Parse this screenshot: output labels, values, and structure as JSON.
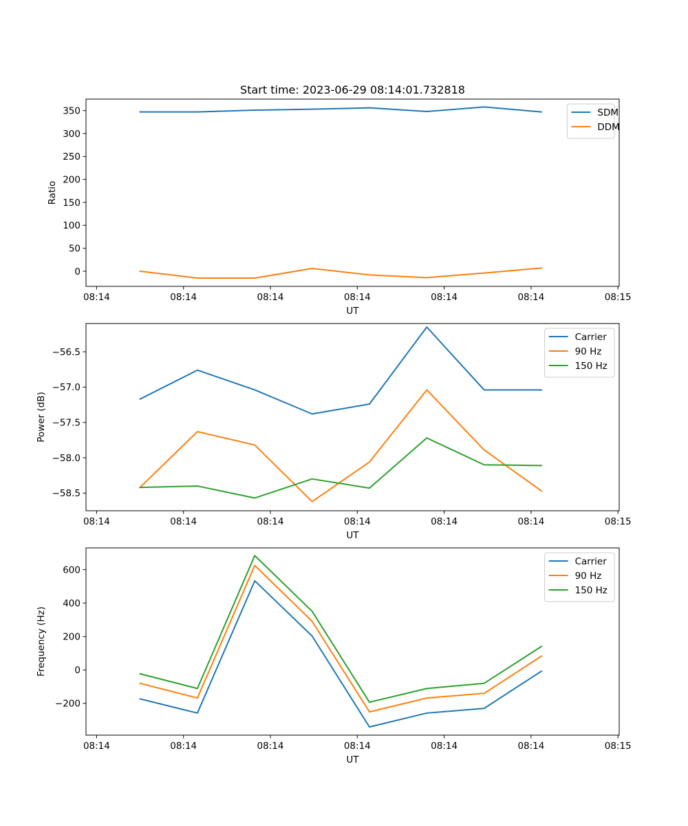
{
  "figure": {
    "title": "Start time: 2023-06-29 08:14:01.732818"
  },
  "chart_data": [
    {
      "type": "line",
      "title": "Start time: 2023-06-29 08:14:01.732818",
      "xlabel": "UT",
      "ylabel": "Ratio",
      "x_tick_labels": [
        "08:14",
        "08:14",
        "08:14",
        "08:14",
        "08:14",
        "08:14",
        "08:15"
      ],
      "x": [
        0.5,
        1.16,
        1.82,
        2.48,
        3.14,
        3.8,
        4.46,
        5.12
      ],
      "xlim": [
        0,
        6
      ],
      "x_ticks": [
        0,
        1,
        2,
        3,
        4,
        5,
        6
      ],
      "ylim": [
        -33,
        375
      ],
      "y_ticks": [
        0,
        50,
        100,
        150,
        200,
        250,
        300,
        350
      ],
      "legend": "top-right",
      "grid": false,
      "series": [
        {
          "name": "SDM",
          "color": "#1f77b4",
          "values": [
            347,
            347,
            351,
            353,
            356,
            348,
            358,
            347
          ]
        },
        {
          "name": "DDM",
          "color": "#ff7f0e",
          "values": [
            0,
            -15,
            -15,
            6,
            -8,
            -14,
            -4,
            7
          ]
        }
      ]
    },
    {
      "type": "line",
      "xlabel": "UT",
      "ylabel": "Power (dB)",
      "x_tick_labels": [
        "08:14",
        "08:14",
        "08:14",
        "08:14",
        "08:14",
        "08:14",
        "08:15"
      ],
      "x": [
        0.5,
        1.16,
        1.82,
        2.48,
        3.14,
        3.8,
        4.46,
        5.12
      ],
      "xlim": [
        0,
        6
      ],
      "x_ticks": [
        0,
        1,
        2,
        3,
        4,
        5,
        6
      ],
      "ylim": [
        -58.75,
        -56.1
      ],
      "y_ticks": [
        -58.5,
        -58.0,
        -57.5,
        -57.0,
        -56.5
      ],
      "y_tick_labels": [
        "−58.5",
        "−58.0",
        "−57.5",
        "−57.0",
        "−56.5"
      ],
      "legend": "top-right",
      "grid": false,
      "series": [
        {
          "name": "Carrier",
          "color": "#1f77b4",
          "values": [
            -57.17,
            -56.76,
            -57.04,
            -57.38,
            -57.24,
            -56.15,
            -57.04,
            -57.04
          ]
        },
        {
          "name": "90 Hz",
          "color": "#ff7f0e",
          "values": [
            -58.42,
            -57.63,
            -57.82,
            -58.62,
            -58.06,
            -57.04,
            -57.89,
            -58.47
          ]
        },
        {
          "name": "150 Hz",
          "color": "#2ca02c",
          "values": [
            -58.42,
            -58.4,
            -58.57,
            -58.3,
            -58.43,
            -57.72,
            -58.1,
            -58.11
          ]
        }
      ]
    },
    {
      "type": "line",
      "xlabel": "UT",
      "ylabel": "Frequency (Hz)",
      "x_tick_labels": [
        "08:14",
        "08:14",
        "08:14",
        "08:14",
        "08:14",
        "08:14",
        "08:15"
      ],
      "x": [
        0.5,
        1.16,
        1.82,
        2.48,
        3.14,
        3.8,
        4.46,
        5.12
      ],
      "xlim": [
        0,
        6
      ],
      "x_ticks": [
        0,
        1,
        2,
        3,
        4,
        5,
        6
      ],
      "ylim": [
        -390,
        730
      ],
      "y_ticks": [
        -200,
        0,
        200,
        400,
        600
      ],
      "y_tick_labels": [
        "−200",
        "0",
        "200",
        "400",
        "600"
      ],
      "legend": "top-right",
      "grid": false,
      "series": [
        {
          "name": "Carrier",
          "color": "#1f77b4",
          "values": [
            -173,
            -258,
            533,
            203,
            -341,
            -258,
            -230,
            -7
          ]
        },
        {
          "name": "90 Hz",
          "color": "#ff7f0e",
          "values": [
            -80,
            -168,
            625,
            291,
            -251,
            -168,
            -140,
            83
          ]
        },
        {
          "name": "150 Hz",
          "color": "#2ca02c",
          "values": [
            -23,
            -111,
            684,
            351,
            -193,
            -111,
            -80,
            141
          ]
        }
      ]
    }
  ]
}
